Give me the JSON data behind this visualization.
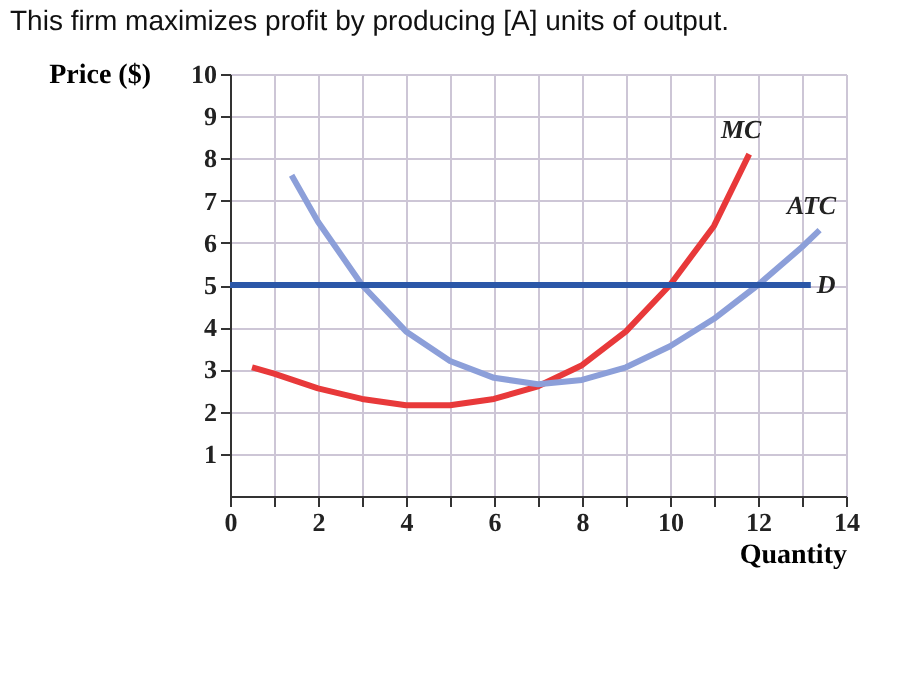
{
  "chart_data": {
    "type": "line",
    "title": "This firm maximizes profit by producing [A] units of output.",
    "xlabel": "Quantity",
    "ylabel": "Price ($)",
    "xlim": [
      0,
      14
    ],
    "ylim": [
      0,
      10
    ],
    "xticks": [
      0,
      {
        "value": 1,
        "label": null
      },
      2,
      {
        "value": 3,
        "label": null
      },
      4,
      {
        "value": 5,
        "label": null
      },
      6,
      {
        "value": 7,
        "label": null
      },
      8,
      {
        "value": 9,
        "label": null
      },
      10,
      {
        "value": 11,
        "label": null
      },
      12,
      {
        "value": 13,
        "label": null
      },
      14
    ],
    "yticks": [
      1,
      2,
      3,
      4,
      5,
      6,
      7,
      8,
      9,
      10
    ],
    "grid": true,
    "series": [
      {
        "name": "MC",
        "color": "#e8393a",
        "x": [
          0.5,
          1,
          2,
          3,
          4,
          5,
          6,
          7,
          8,
          9,
          10,
          11,
          11.8
        ],
        "values": [
          3.05,
          2.9,
          2.55,
          2.3,
          2.15,
          2.15,
          2.3,
          2.6,
          3.1,
          3.9,
          5,
          6.4,
          8.1
        ]
      },
      {
        "name": "ATC",
        "color": "#8c9fd9",
        "x": [
          1.4,
          2,
          3,
          4,
          5,
          6,
          7,
          8,
          9,
          10,
          11,
          12,
          13,
          13.4
        ],
        "values": [
          7.6,
          6.5,
          5,
          3.9,
          3.2,
          2.8,
          2.65,
          2.75,
          3.05,
          3.55,
          4.2,
          5,
          5.9,
          6.3
        ]
      },
      {
        "name": "D",
        "color": "#2b57a8",
        "x": [
          0,
          13.2
        ],
        "values": [
          5,
          5
        ]
      }
    ]
  }
}
